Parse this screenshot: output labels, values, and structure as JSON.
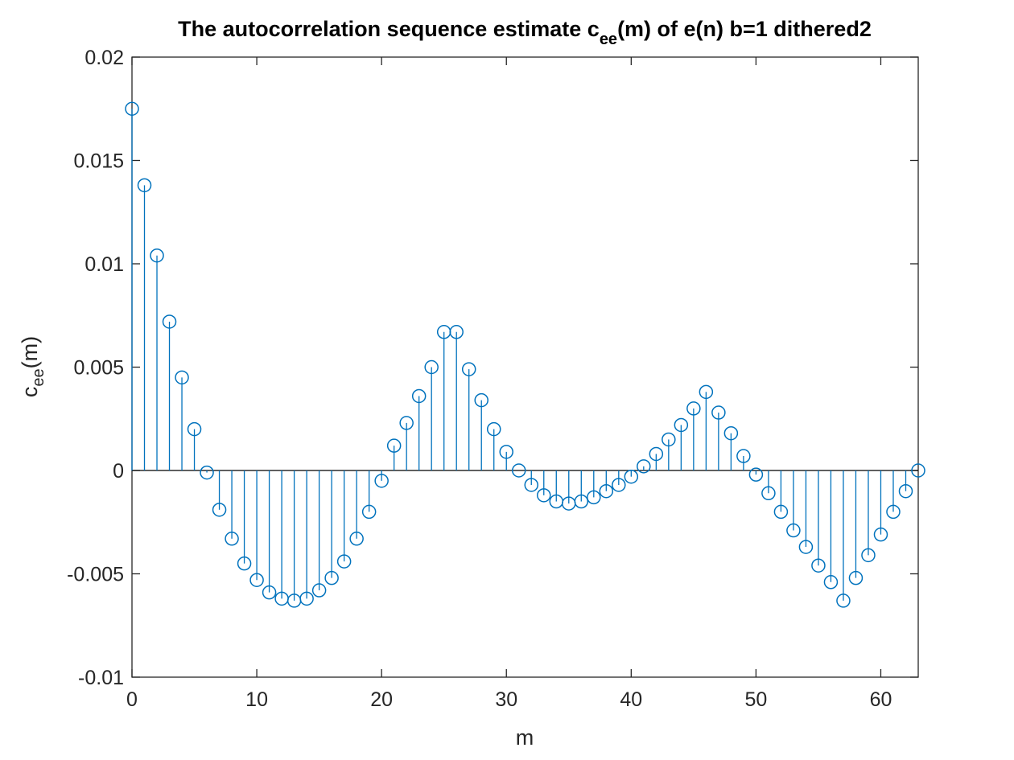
{
  "chart_data": {
    "type": "stem",
    "title_main_a": "The autocorrelation sequence estimate c",
    "title_sub": "ee",
    "title_main_b": "(m) of e(n) b=1 dithered2",
    "xlabel": "m",
    "ylabel_a": "c",
    "ylabel_sub": "ee",
    "ylabel_b": "(m)",
    "xlim": [
      0,
      63
    ],
    "ylim": [
      -0.01,
      0.02
    ],
    "xticks": [
      0,
      10,
      20,
      30,
      40,
      50,
      60
    ],
    "xtick_labels": [
      "0",
      "10",
      "20",
      "30",
      "40",
      "50",
      "60"
    ],
    "yticks": [
      -0.01,
      -0.005,
      0,
      0.005,
      0.01,
      0.015,
      0.02
    ],
    "ytick_labels": [
      "-0.01",
      "-0.005",
      "0",
      "0.005",
      "0.01",
      "0.015",
      "0.02"
    ],
    "grid": false,
    "color": "#0072BD",
    "x": [
      0,
      1,
      2,
      3,
      4,
      5,
      6,
      7,
      8,
      9,
      10,
      11,
      12,
      13,
      14,
      15,
      16,
      17,
      18,
      19,
      20,
      21,
      22,
      23,
      24,
      25,
      26,
      27,
      28,
      29,
      30,
      31,
      32,
      33,
      34,
      35,
      36,
      37,
      38,
      39,
      40,
      41,
      42,
      43,
      44,
      45,
      46,
      47,
      48,
      49,
      50,
      51,
      52,
      53,
      54,
      55,
      56,
      57,
      58,
      59,
      60,
      61,
      62,
      63
    ],
    "values": [
      0.0175,
      0.0138,
      0.0104,
      0.0072,
      0.0045,
      0.002,
      -0.0001,
      -0.0019,
      -0.0033,
      -0.0045,
      -0.0053,
      -0.0059,
      -0.0062,
      -0.0063,
      -0.0062,
      -0.0058,
      -0.0052,
      -0.0044,
      -0.0033,
      -0.002,
      -0.0005,
      0.0012,
      0.0023,
      0.0036,
      0.005,
      0.0067,
      0.0067,
      0.0049,
      0.0034,
      0.002,
      0.0009,
      0.0,
      -0.0007,
      -0.0012,
      -0.0015,
      -0.0016,
      -0.0015,
      -0.0013,
      -0.001,
      -0.0007,
      -0.0003,
      0.0002,
      0.0008,
      0.0015,
      0.0022,
      0.003,
      0.0038,
      0.0028,
      0.0018,
      0.0007,
      -0.0002,
      -0.0011,
      -0.002,
      -0.0029,
      -0.0037,
      -0.0046,
      -0.0054,
      -0.0063,
      -0.0052,
      -0.0041,
      -0.0031,
      -0.002,
      -0.001,
      0.0
    ]
  }
}
